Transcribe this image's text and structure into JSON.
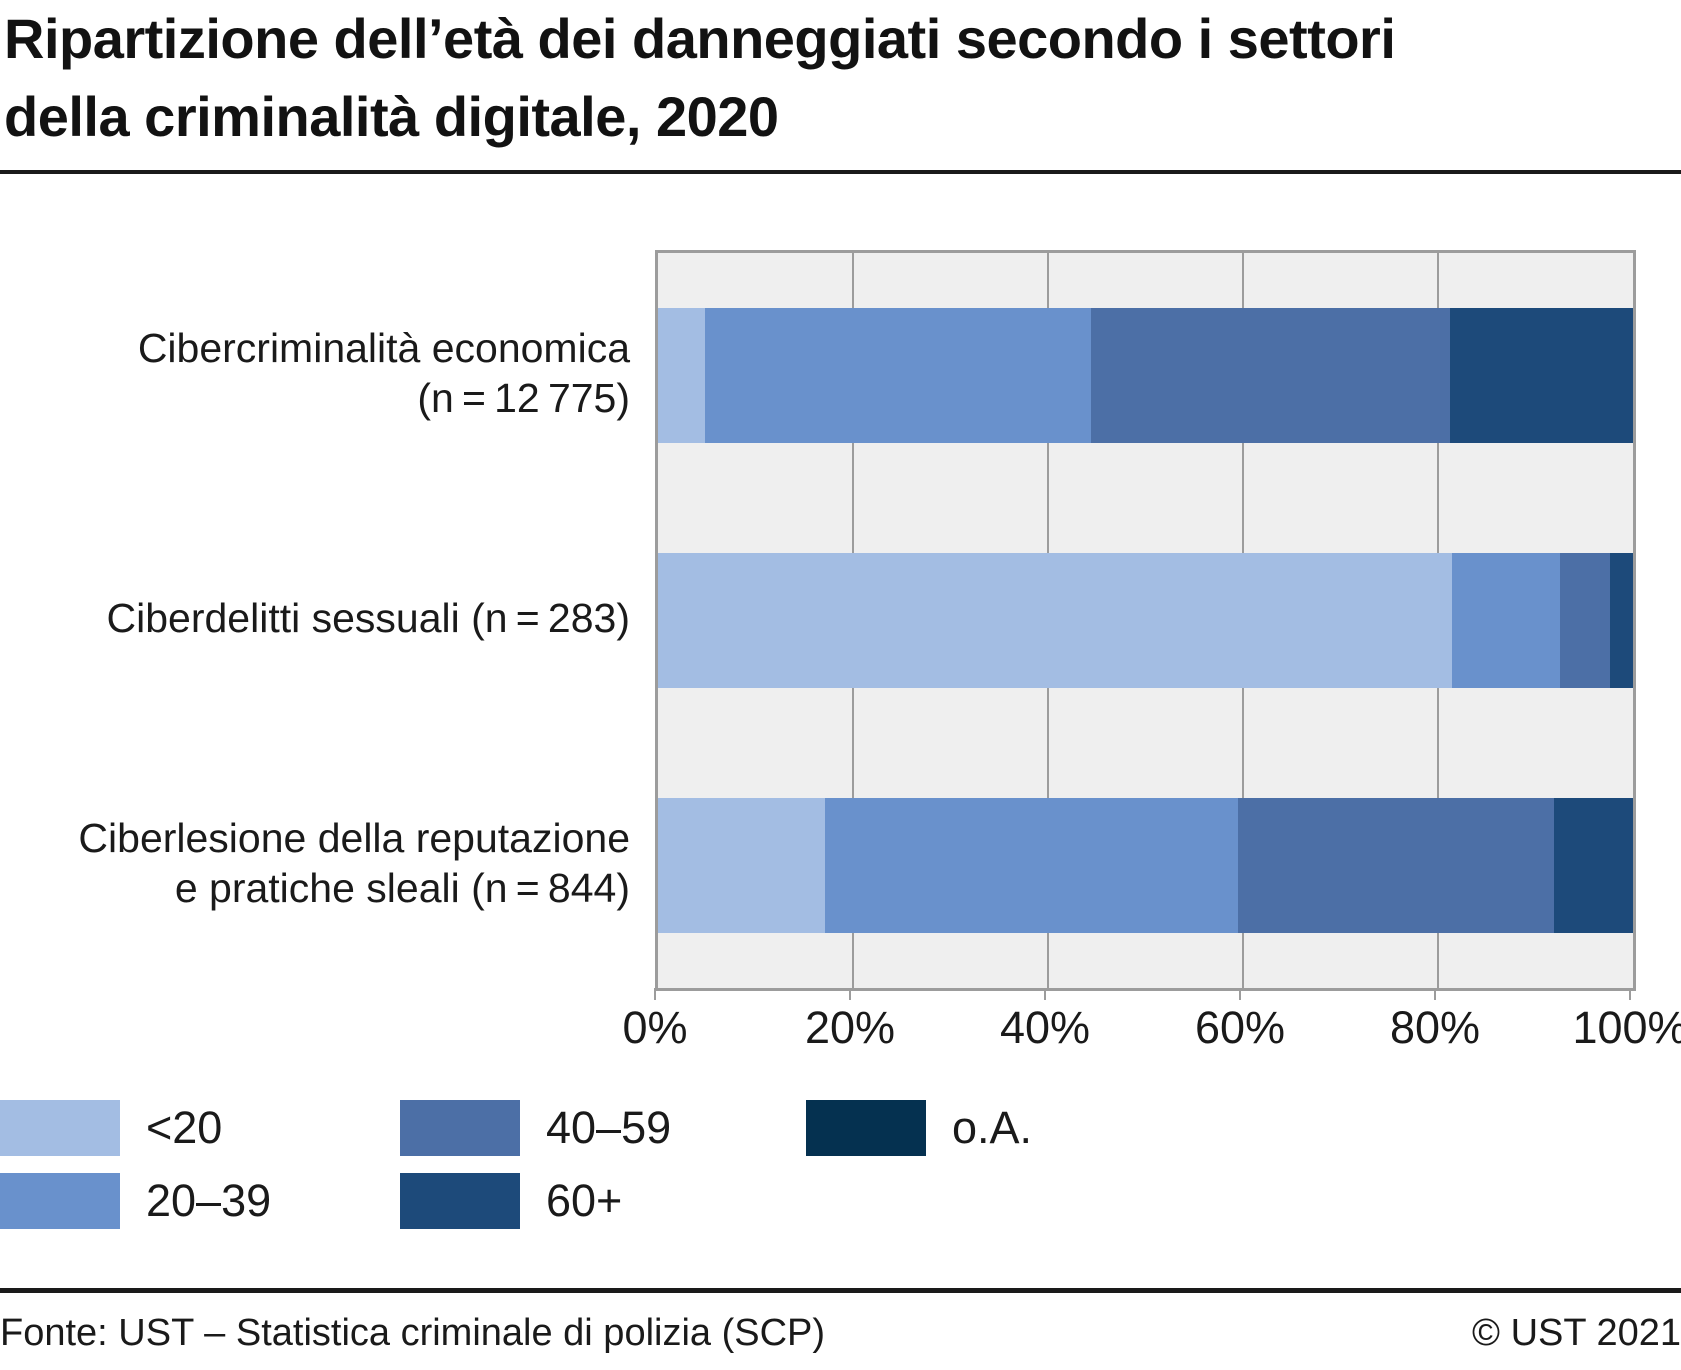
{
  "title": "Ripartizione dell’età dei danneggiati secondo i settori\ndella criminalità digitale, 2020",
  "footer": {
    "source": "Fonte: UST – Statistica criminale di polizia (SCP)",
    "copyright": "© UST 2021"
  },
  "colors": {
    "plot_background": "#efefef",
    "grid": "#9c9c9c",
    "text": "#1a1a1a"
  },
  "chart_data": {
    "type": "bar",
    "orientation": "horizontal",
    "stacked": true,
    "unit": "percent",
    "categories": [
      "Cibercriminalità economica\n(n = 12 775)",
      "Ciberdelitti sessuali (n = 283)",
      "Ciberlesione della reputazione\ne pratiche sleali (n = 844)"
    ],
    "sample_sizes": [
      12775,
      283,
      844
    ],
    "series": [
      {
        "name": "<20",
        "color": "#a3bde3",
        "values": [
          4.8,
          81.4,
          17.1
        ]
      },
      {
        "name": "20–39",
        "color": "#6991cc",
        "values": [
          39.6,
          11.1,
          42.4
        ]
      },
      {
        "name": "40–59",
        "color": "#4c6fa6",
        "values": [
          36.8,
          5.1,
          32.4
        ]
      },
      {
        "name": "60+",
        "color": "#1d4a7a",
        "values": [
          18.8,
          2.4,
          8.1
        ]
      },
      {
        "name": "o.A.",
        "color": "#053150",
        "values": [
          0,
          0,
          0
        ]
      }
    ],
    "xlim": [
      0,
      100
    ],
    "x_ticks": [
      "0%",
      "20%",
      "40%",
      "60%",
      "80%",
      "100%"
    ],
    "gridlines_at": [
      20,
      40,
      60,
      80
    ],
    "grid": true,
    "legend_position": "bottom-left"
  }
}
